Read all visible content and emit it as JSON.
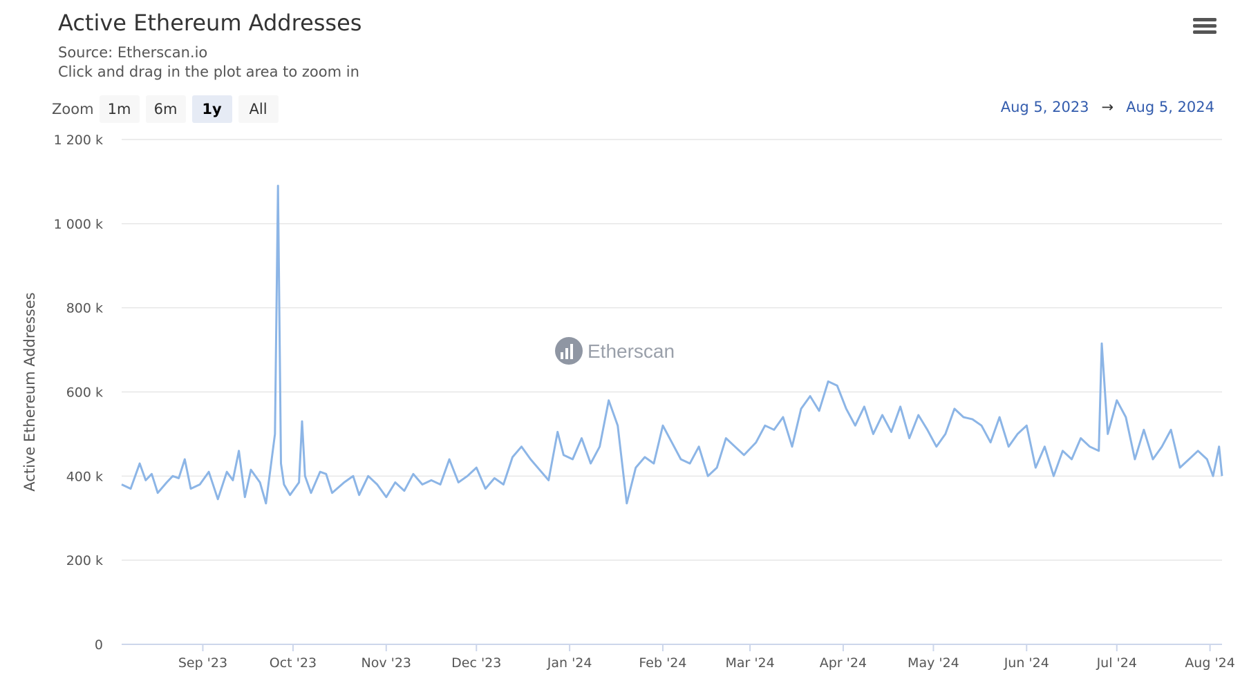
{
  "header": {
    "title": "Active Ethereum Addresses",
    "source": "Source: Etherscan.io",
    "hint": "Click and drag in the plot area to zoom in"
  },
  "zoom": {
    "label": "Zoom",
    "buttons": [
      "1m",
      "6m",
      "1y",
      "All"
    ],
    "active": "1y"
  },
  "range": {
    "from": "Aug 5, 2023",
    "arrow": "→",
    "to": "Aug 5, 2024"
  },
  "watermark": "Etherscan",
  "colors": {
    "line": "#8cb5e6",
    "grid": "#e6e6e6",
    "range": "#335cad"
  },
  "chart_data": {
    "type": "line",
    "ylabel": "Active Ethereum Addresses",
    "ylim": [
      0,
      1200000
    ],
    "y_ticks": [
      {
        "value": 0,
        "label": "0"
      },
      {
        "value": 200000,
        "label": "200 k"
      },
      {
        "value": 400000,
        "label": "400 k"
      },
      {
        "value": 600000,
        "label": "600 k"
      },
      {
        "value": 800000,
        "label": "800 k"
      },
      {
        "value": 1000000,
        "label": "1 000 k"
      },
      {
        "value": 1200000,
        "label": "1 200 k"
      }
    ],
    "xlim": [
      "2023-08-05",
      "2024-08-05"
    ],
    "x_ticks": [
      {
        "date": "2023-09-01",
        "label": "Sep '23"
      },
      {
        "date": "2023-10-01",
        "label": "Oct '23"
      },
      {
        "date": "2023-11-01",
        "label": "Nov '23"
      },
      {
        "date": "2023-12-01",
        "label": "Dec '23"
      },
      {
        "date": "2024-01-01",
        "label": "Jan '24"
      },
      {
        "date": "2024-02-01",
        "label": "Feb '24"
      },
      {
        "date": "2024-03-01",
        "label": "Mar '24"
      },
      {
        "date": "2024-04-01",
        "label": "Apr '24"
      },
      {
        "date": "2024-05-01",
        "label": "May '24"
      },
      {
        "date": "2024-06-01",
        "label": "Jun '24"
      },
      {
        "date": "2024-07-01",
        "label": "Jul '24"
      },
      {
        "date": "2024-08-01",
        "label": "Aug '24"
      }
    ],
    "series": [
      {
        "points": [
          [
            "2023-08-05",
            380000
          ],
          [
            "2023-08-08",
            370000
          ],
          [
            "2023-08-11",
            430000
          ],
          [
            "2023-08-13",
            390000
          ],
          [
            "2023-08-15",
            405000
          ],
          [
            "2023-08-17",
            360000
          ],
          [
            "2023-08-20",
            385000
          ],
          [
            "2023-08-22",
            400000
          ],
          [
            "2023-08-24",
            395000
          ],
          [
            "2023-08-26",
            440000
          ],
          [
            "2023-08-28",
            370000
          ],
          [
            "2023-08-31",
            380000
          ],
          [
            "2023-09-03",
            410000
          ],
          [
            "2023-09-06",
            345000
          ],
          [
            "2023-09-09",
            410000
          ],
          [
            "2023-09-11",
            390000
          ],
          [
            "2023-09-13",
            460000
          ],
          [
            "2023-09-15",
            350000
          ],
          [
            "2023-09-17",
            415000
          ],
          [
            "2023-09-20",
            385000
          ],
          [
            "2023-09-22",
            335000
          ],
          [
            "2023-09-25",
            500000
          ],
          [
            "2023-09-26",
            1090000
          ],
          [
            "2023-09-27",
            430000
          ],
          [
            "2023-09-28",
            380000
          ],
          [
            "2023-09-30",
            355000
          ],
          [
            "2023-10-03",
            385000
          ],
          [
            "2023-10-04",
            530000
          ],
          [
            "2023-10-05",
            400000
          ],
          [
            "2023-10-07",
            360000
          ],
          [
            "2023-10-10",
            410000
          ],
          [
            "2023-10-12",
            405000
          ],
          [
            "2023-10-14",
            360000
          ],
          [
            "2023-10-18",
            385000
          ],
          [
            "2023-10-21",
            400000
          ],
          [
            "2023-10-23",
            355000
          ],
          [
            "2023-10-26",
            400000
          ],
          [
            "2023-10-29",
            380000
          ],
          [
            "2023-11-01",
            350000
          ],
          [
            "2023-11-04",
            385000
          ],
          [
            "2023-11-07",
            365000
          ],
          [
            "2023-11-10",
            405000
          ],
          [
            "2023-11-13",
            380000
          ],
          [
            "2023-11-16",
            390000
          ],
          [
            "2023-11-19",
            380000
          ],
          [
            "2023-11-22",
            440000
          ],
          [
            "2023-11-25",
            385000
          ],
          [
            "2023-11-28",
            400000
          ],
          [
            "2023-12-01",
            420000
          ],
          [
            "2023-12-04",
            370000
          ],
          [
            "2023-12-07",
            395000
          ],
          [
            "2023-12-10",
            380000
          ],
          [
            "2023-12-13",
            445000
          ],
          [
            "2023-12-16",
            470000
          ],
          [
            "2023-12-19",
            440000
          ],
          [
            "2023-12-22",
            415000
          ],
          [
            "2023-12-25",
            390000
          ],
          [
            "2023-12-28",
            505000
          ],
          [
            "2023-12-30",
            450000
          ],
          [
            "2024-01-02",
            440000
          ],
          [
            "2024-01-05",
            490000
          ],
          [
            "2024-01-08",
            430000
          ],
          [
            "2024-01-11",
            470000
          ],
          [
            "2024-01-14",
            580000
          ],
          [
            "2024-01-17",
            520000
          ],
          [
            "2024-01-20",
            335000
          ],
          [
            "2024-01-23",
            420000
          ],
          [
            "2024-01-26",
            445000
          ],
          [
            "2024-01-29",
            430000
          ],
          [
            "2024-02-01",
            520000
          ],
          [
            "2024-02-04",
            480000
          ],
          [
            "2024-02-07",
            440000
          ],
          [
            "2024-02-10",
            430000
          ],
          [
            "2024-02-13",
            470000
          ],
          [
            "2024-02-16",
            400000
          ],
          [
            "2024-02-19",
            420000
          ],
          [
            "2024-02-22",
            490000
          ],
          [
            "2024-02-25",
            470000
          ],
          [
            "2024-02-28",
            450000
          ],
          [
            "2024-03-03",
            480000
          ],
          [
            "2024-03-06",
            520000
          ],
          [
            "2024-03-09",
            510000
          ],
          [
            "2024-03-12",
            540000
          ],
          [
            "2024-03-15",
            470000
          ],
          [
            "2024-03-18",
            560000
          ],
          [
            "2024-03-21",
            590000
          ],
          [
            "2024-03-24",
            555000
          ],
          [
            "2024-03-27",
            625000
          ],
          [
            "2024-03-30",
            615000
          ],
          [
            "2024-04-02",
            560000
          ],
          [
            "2024-04-05",
            520000
          ],
          [
            "2024-04-08",
            565000
          ],
          [
            "2024-04-11",
            500000
          ],
          [
            "2024-04-14",
            545000
          ],
          [
            "2024-04-17",
            505000
          ],
          [
            "2024-04-20",
            565000
          ],
          [
            "2024-04-23",
            490000
          ],
          [
            "2024-04-26",
            545000
          ],
          [
            "2024-04-29",
            510000
          ],
          [
            "2024-05-02",
            470000
          ],
          [
            "2024-05-05",
            500000
          ],
          [
            "2024-05-08",
            560000
          ],
          [
            "2024-05-11",
            540000
          ],
          [
            "2024-05-14",
            535000
          ],
          [
            "2024-05-17",
            520000
          ],
          [
            "2024-05-20",
            480000
          ],
          [
            "2024-05-23",
            540000
          ],
          [
            "2024-05-26",
            470000
          ],
          [
            "2024-05-29",
            500000
          ],
          [
            "2024-06-01",
            520000
          ],
          [
            "2024-06-04",
            420000
          ],
          [
            "2024-06-07",
            470000
          ],
          [
            "2024-06-10",
            400000
          ],
          [
            "2024-06-13",
            460000
          ],
          [
            "2024-06-16",
            440000
          ],
          [
            "2024-06-19",
            490000
          ],
          [
            "2024-06-22",
            470000
          ],
          [
            "2024-06-25",
            460000
          ],
          [
            "2024-06-26",
            715000
          ],
          [
            "2024-06-28",
            500000
          ],
          [
            "2024-07-01",
            580000
          ],
          [
            "2024-07-04",
            540000
          ],
          [
            "2024-07-07",
            440000
          ],
          [
            "2024-07-10",
            510000
          ],
          [
            "2024-07-13",
            440000
          ],
          [
            "2024-07-16",
            470000
          ],
          [
            "2024-07-19",
            510000
          ],
          [
            "2024-07-22",
            420000
          ],
          [
            "2024-07-25",
            440000
          ],
          [
            "2024-07-28",
            460000
          ],
          [
            "2024-07-31",
            440000
          ],
          [
            "2024-08-02",
            400000
          ],
          [
            "2024-08-04",
            470000
          ],
          [
            "2024-08-05",
            400000
          ]
        ]
      }
    ]
  }
}
